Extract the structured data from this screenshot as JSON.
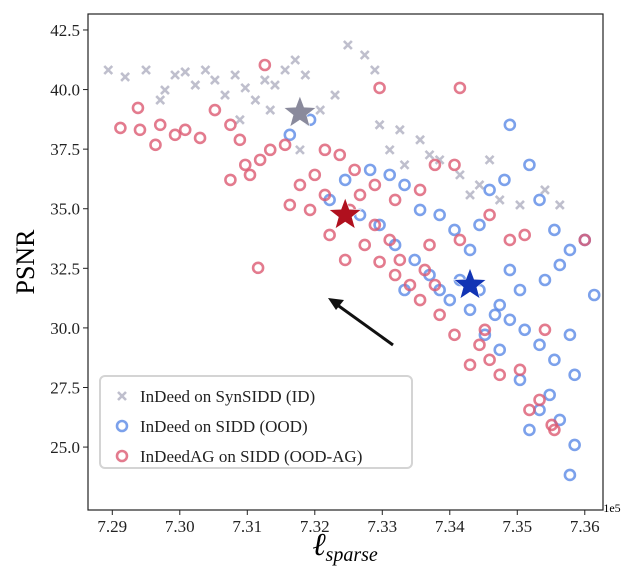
{
  "chart_data": {
    "type": "scatter",
    "ylabel": "PSNR",
    "xlabel": "ℓ",
    "xlabel_sub": "sparse",
    "x_offset": "1e5",
    "xlim": [
      7.2864,
      7.3627
    ],
    "ylim": [
      22.36,
      43.17
    ],
    "xticks": [
      7.29,
      {
        "value": 7.3,
        "label": "7.30"
      },
      7.31,
      7.32,
      7.33,
      7.34,
      7.35,
      7.36
    ],
    "yticks": [
      {
        "value": 25,
        "label": "25.0"
      },
      27.5,
      {
        "value": 30,
        "label": "30.0"
      },
      32.5,
      {
        "value": 35,
        "label": "35.0"
      },
      37.5,
      {
        "value": 40,
        "label": "40.0"
      },
      42.5
    ],
    "legend": "lower left",
    "series": [
      {
        "name": "InDeed on SynSIDD (ID)",
        "color": "#b4b4c4",
        "marker": "x",
        "centroid": {
          "x": 7.3178,
          "y": 39.02,
          "color": "#8a8a9c"
        },
        "x": [
          7.2894,
          7.2919,
          7.295,
          7.2978,
          7.2993,
          7.3008,
          7.3023,
          7.3038,
          7.3052,
          7.3067,
          7.3082,
          7.3097,
          7.3112,
          7.3126,
          7.3141,
          7.3156,
          7.3171,
          7.3186,
          7.3208,
          7.323,
          7.3249,
          7.3274,
          7.3289,
          7.3296,
          7.3326,
          7.3356,
          7.3385,
          7.3415,
          7.3444,
          7.3474,
          7.3504,
          7.3541,
          7.3563,
          7.3459,
          7.343,
          7.337,
          7.3333,
          7.3311,
          7.3089,
          7.3134,
          7.3178,
          7.2971
        ],
        "values": [
          40.82,
          40.53,
          40.82,
          39.98,
          40.61,
          40.74,
          40.19,
          40.82,
          40.4,
          39.77,
          40.61,
          40.07,
          39.56,
          40.4,
          40.19,
          40.82,
          41.24,
          40.61,
          39.14,
          39.77,
          41.87,
          41.45,
          40.82,
          38.52,
          38.31,
          37.89,
          37.05,
          36.42,
          36.0,
          35.37,
          35.16,
          35.79,
          35.16,
          37.05,
          35.58,
          37.26,
          36.84,
          37.47,
          38.73,
          39.14,
          37.47,
          39.56
        ]
      },
      {
        "name": "InDeed on SIDD (OOD)",
        "color": "#5b8ae6",
        "marker": "o",
        "centroid": {
          "x": 7.343,
          "y": 31.8,
          "color": "#1234b4"
        },
        "x": [
          7.3222,
          7.3245,
          7.3282,
          7.3311,
          7.3333,
          7.3356,
          7.3385,
          7.3407,
          7.343,
          7.3444,
          7.3459,
          7.3481,
          7.3518,
          7.3489,
          7.3533,
          7.3555,
          7.3578,
          7.36,
          7.3614,
          7.3563,
          7.3541,
          7.3504,
          7.3474,
          7.3489,
          7.3511,
          7.3533,
          7.3555,
          7.3578,
          7.3585,
          7.3548,
          7.3533,
          7.3563,
          7.3585,
          7.3578,
          7.3518,
          7.3504,
          7.3474,
          7.3452,
          7.343,
          7.34,
          7.3385,
          7.337,
          7.3348,
          7.3333,
          7.3319,
          7.3296,
          7.3267,
          7.3193,
          7.3163,
          7.3415,
          7.3444,
          7.3467,
          7.3489
        ],
        "values": [
          35.37,
          36.21,
          36.63,
          36.42,
          36.0,
          34.95,
          34.74,
          34.11,
          33.27,
          34.32,
          35.79,
          36.21,
          36.84,
          38.52,
          35.37,
          34.11,
          33.27,
          33.69,
          31.38,
          32.64,
          32.01,
          31.59,
          30.96,
          30.34,
          29.92,
          29.29,
          28.66,
          29.71,
          28.03,
          27.19,
          26.56,
          26.14,
          25.09,
          23.83,
          25.72,
          27.82,
          29.08,
          29.71,
          30.76,
          31.17,
          31.59,
          32.22,
          32.85,
          31.59,
          33.48,
          34.32,
          34.74,
          38.73,
          38.1,
          32.01,
          31.59,
          30.55,
          32.43
        ]
      },
      {
        "name": "InDeedAG on SIDD (OOD-AG)",
        "color": "#dc5a72",
        "marker": "o",
        "centroid": {
          "x": 7.3245,
          "y": 34.74,
          "color": "#b0101e"
        },
        "x": [
          7.2912,
          7.2938,
          7.2971,
          7.2993,
          7.3008,
          7.303,
          7.3052,
          7.3075,
          7.3089,
          7.3097,
          7.3119,
          7.3134,
          7.3156,
          7.3178,
          7.32,
          7.3215,
          7.3237,
          7.3259,
          7.3126,
          7.3296,
          7.3415,
          7.3116,
          7.3222,
          7.3252,
          7.3267,
          7.3289,
          7.3311,
          7.3326,
          7.3341,
          7.3356,
          7.337,
          7.3385,
          7.3407,
          7.343,
          7.3444,
          7.3459,
          7.3415,
          7.3459,
          7.3489,
          7.3511,
          7.3533,
          7.3555,
          7.3504,
          7.3296,
          7.3245,
          7.3289,
          7.3319,
          7.3356,
          7.3378,
          7.3407,
          7.3215,
          7.3193,
          7.3163,
          7.3075,
          7.3104,
          7.2941,
          7.2964,
          7.3274,
          7.3319,
          7.3363,
          7.3378,
          7.3452,
          7.3474,
          7.3518,
          7.3541,
          7.3551,
          7.36
        ],
        "values": [
          38.39,
          39.23,
          38.52,
          38.1,
          38.31,
          37.97,
          39.14,
          38.52,
          37.89,
          36.84,
          37.05,
          37.47,
          37.68,
          36.0,
          36.42,
          37.47,
          37.26,
          36.63,
          41.03,
          40.07,
          40.07,
          32.52,
          33.9,
          34.95,
          35.58,
          34.32,
          33.69,
          32.85,
          31.8,
          31.17,
          33.48,
          30.55,
          29.71,
          28.45,
          29.29,
          28.66,
          33.69,
          34.74,
          33.69,
          33.9,
          26.98,
          25.72,
          28.24,
          32.77,
          32.85,
          36.0,
          35.37,
          35.79,
          36.84,
          36.84,
          35.58,
          34.95,
          35.16,
          36.21,
          36.42,
          38.31,
          37.68,
          33.48,
          32.22,
          32.43,
          31.8,
          29.92,
          28.03,
          26.56,
          29.92,
          25.93,
          33.69
        ]
      }
    ]
  }
}
